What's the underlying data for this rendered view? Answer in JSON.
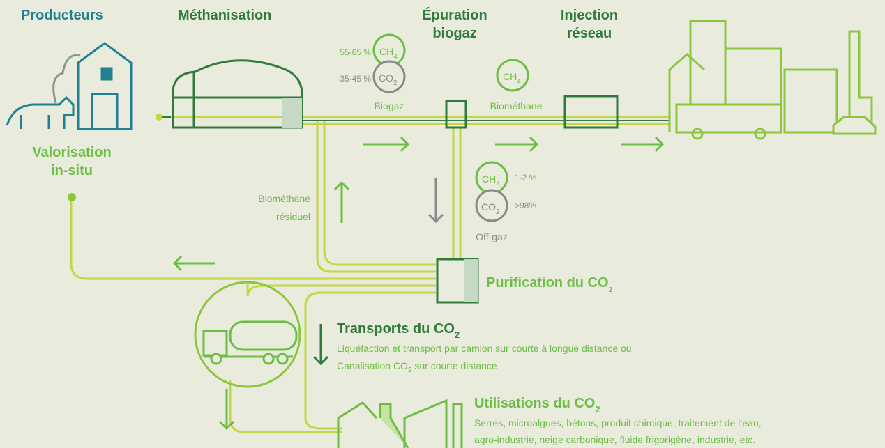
{
  "header": {
    "producteurs": "Producteurs",
    "methanisation": "Méthanisation",
    "epuration": [
      "Épuration",
      "biogaz"
    ],
    "injection": [
      "Injection",
      "réseau"
    ],
    "valorisation": [
      "Valorisation",
      "in-situ"
    ]
  },
  "biogaz": {
    "ch4": {
      "formula": "CH",
      "sub": "4",
      "share": "55-65 %"
    },
    "co2": {
      "formula": "CO",
      "sub": "2",
      "share": "35-45 %"
    },
    "label": "Biogaz"
  },
  "biomethane": {
    "ch4": {
      "formula": "CH",
      "sub": "4"
    },
    "label": "Biométhane"
  },
  "offgaz": {
    "ch4": {
      "formula": "CH",
      "sub": "4",
      "share": "1-2 %"
    },
    "co2": {
      "formula": "CO",
      "sub": "2",
      "share": ">98%"
    },
    "label": "Off-gaz"
  },
  "residual": [
    "Biométhane",
    "résiduel"
  ],
  "purification": {
    "title": "Purification du CO",
    "sub": "2"
  },
  "transport": {
    "title": "Transports du CO",
    "sub": "2",
    "line1": "Liquéfaction et transport par camion sur courte à longue distance ou",
    "line2": {
      "before": "Canalisation CO",
      "sub": "2",
      "after": " sur courte distance"
    }
  },
  "utilisation": {
    "title": "Utilisations du CO",
    "sub": "2",
    "lines": [
      "Serres, microalgues, bétons, produit chimique, traitement de l’eau,",
      "agro-industrie, neige carbonique, fluide frigorigène, industrie, etc."
    ]
  }
}
